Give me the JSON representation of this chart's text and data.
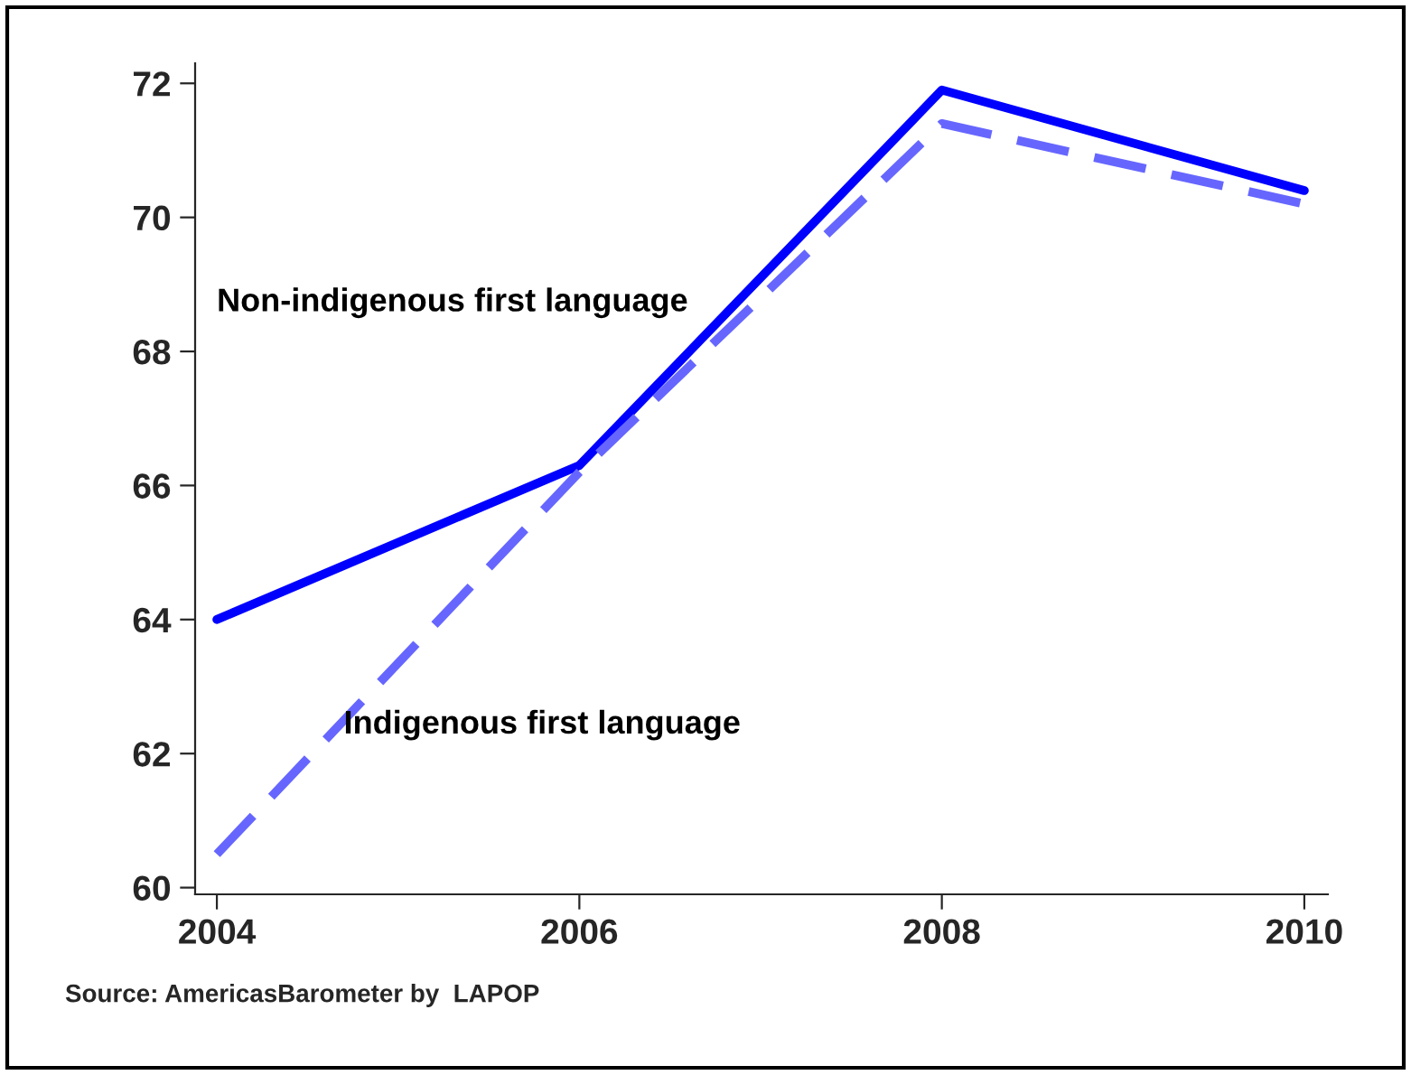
{
  "chart_data": {
    "type": "line",
    "x": [
      2004,
      2006,
      2008,
      2010
    ],
    "series": [
      {
        "name": "Non-indigenous first language",
        "color": "#0000ff",
        "values": [
          64.0,
          66.3,
          71.9,
          70.4
        ],
        "line_style": "solid"
      },
      {
        "name": "Indigenous first language",
        "color": "#6666ff",
        "values": [
          60.5,
          66.2,
          71.4,
          70.2
        ],
        "line_style": "dashed"
      }
    ],
    "xlim": [
      2003.88,
      2010.13
    ],
    "xticks": [
      2004,
      2006,
      2008,
      2010
    ],
    "ylim": [
      59.9,
      72.3
    ],
    "yticks": [
      60,
      62,
      64,
      66,
      68,
      70,
      72
    ],
    "grid": false,
    "legend": false,
    "annotations": [
      "Source: AmericasBarometer by  LAPOP"
    ]
  }
}
